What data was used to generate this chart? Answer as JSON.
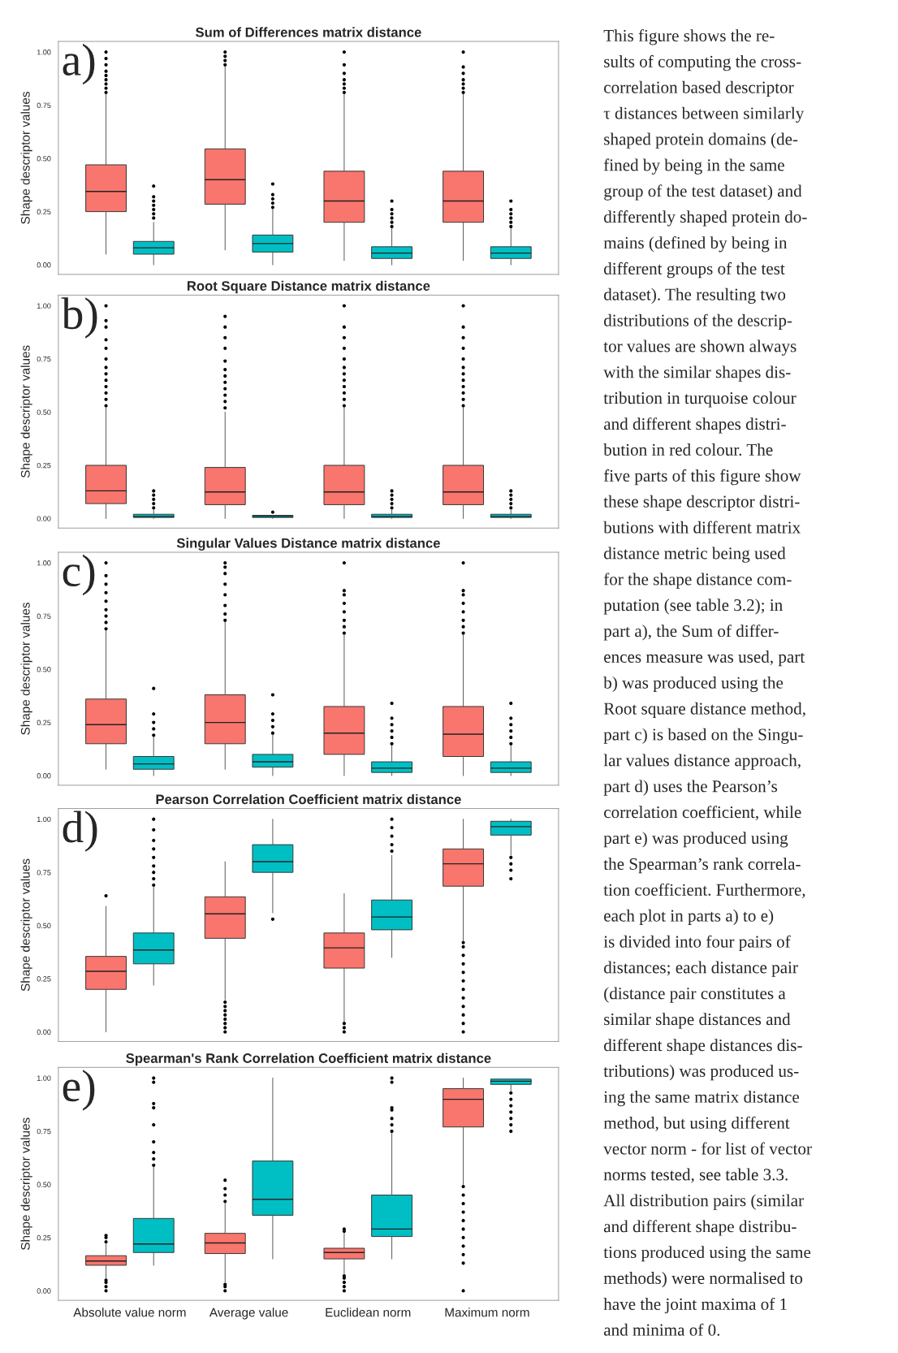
{
  "chart_data": [
    {
      "type": "box",
      "title": "Sum of Differences matrix distance",
      "ylabel": "Shape descriptor values",
      "categories": [
        null,
        null,
        null,
        null
      ],
      "ylim": [
        -0.045,
        1.05
      ],
      "yticks": [
        {
          "value": 0,
          "label": "0.00"
        },
        {
          "value": 0.25,
          "label": "0.25"
        },
        {
          "value": 0.5,
          "label": "0.50"
        },
        {
          "value": 0.75,
          "label": "0.75"
        },
        {
          "value": 1,
          "label": "1.00"
        }
      ],
      "tick_labels": "y",
      "annotations": [
        "a)"
      ],
      "series": [
        {
          "color": "#f8766d",
          "boxes": [
            {
              "low": 0.05,
              "q1": 0.25,
              "median": 0.345,
              "q3": 0.47,
              "high": 0.8,
              "outliers": [
                0.81,
                0.83,
                0.85,
                0.87,
                0.89,
                0.91,
                0.94,
                0.97,
                1.0
              ]
            },
            {
              "low": 0.07,
              "q1": 0.285,
              "median": 0.4,
              "q3": 0.545,
              "high": 0.93,
              "outliers": [
                0.94,
                0.96,
                0.98,
                1.0
              ]
            },
            {
              "low": 0.02,
              "q1": 0.2,
              "median": 0.3,
              "q3": 0.44,
              "high": 0.8,
              "outliers": [
                0.81,
                0.83,
                0.85,
                0.87,
                0.9,
                0.94,
                1.0
              ]
            },
            {
              "low": 0.02,
              "q1": 0.2,
              "median": 0.3,
              "q3": 0.44,
              "high": 0.8,
              "outliers": [
                0.81,
                0.83,
                0.85,
                0.87,
                0.9,
                0.93,
                1.0
              ]
            }
          ]
        },
        {
          "color": "#00bfc4",
          "boxes": [
            {
              "low": 0.0,
              "q1": 0.05,
              "median": 0.08,
              "q3": 0.11,
              "high": 0.2,
              "outliers": [
                0.22,
                0.24,
                0.26,
                0.28,
                0.3,
                0.32,
                0.37
              ]
            },
            {
              "low": 0.0,
              "q1": 0.06,
              "median": 0.1,
              "q3": 0.14,
              "high": 0.26,
              "outliers": [
                0.27,
                0.29,
                0.31,
                0.33,
                0.38
              ]
            },
            {
              "low": 0.0,
              "q1": 0.03,
              "median": 0.055,
              "q3": 0.085,
              "high": 0.17,
              "outliers": [
                0.18,
                0.2,
                0.22,
                0.24,
                0.26,
                0.3
              ]
            },
            {
              "low": 0.0,
              "q1": 0.03,
              "median": 0.055,
              "q3": 0.085,
              "high": 0.17,
              "outliers": [
                0.18,
                0.2,
                0.22,
                0.24,
                0.26,
                0.3
              ]
            }
          ]
        }
      ]
    },
    {
      "type": "box",
      "title": "Root Square Distance matrix distance",
      "ylabel": "Shape descriptor values",
      "categories": [
        null,
        null,
        null,
        null
      ],
      "ylim": [
        -0.045,
        1.05
      ],
      "yticks": [
        {
          "value": 0,
          "label": "0.00"
        },
        {
          "value": 0.25,
          "label": "0.25"
        },
        {
          "value": 0.5,
          "label": "0.50"
        },
        {
          "value": 0.75,
          "label": "0.75"
        },
        {
          "value": 1,
          "label": "1.00"
        }
      ],
      "tick_labels": "y",
      "annotations": [
        "b)"
      ],
      "series": [
        {
          "color": "#f8766d",
          "boxes": [
            {
              "low": 0.0,
              "q1": 0.07,
              "median": 0.13,
              "q3": 0.25,
              "high": 0.52,
              "outliers": [
                0.53,
                0.56,
                0.59,
                0.62,
                0.65,
                0.68,
                0.71,
                0.75,
                0.8,
                0.84,
                0.9,
                0.93,
                1.0
              ]
            },
            {
              "low": 0.0,
              "q1": 0.065,
              "median": 0.125,
              "q3": 0.24,
              "high": 0.5,
              "outliers": [
                0.52,
                0.55,
                0.58,
                0.61,
                0.64,
                0.67,
                0.7,
                0.74,
                0.8,
                0.85,
                0.9,
                0.95
              ]
            },
            {
              "low": 0.0,
              "q1": 0.065,
              "median": 0.125,
              "q3": 0.25,
              "high": 0.52,
              "outliers": [
                0.53,
                0.56,
                0.59,
                0.62,
                0.65,
                0.68,
                0.71,
                0.75,
                0.8,
                0.85,
                0.9,
                1.0
              ]
            },
            {
              "low": 0.0,
              "q1": 0.065,
              "median": 0.125,
              "q3": 0.25,
              "high": 0.52,
              "outliers": [
                0.53,
                0.56,
                0.59,
                0.62,
                0.65,
                0.68,
                0.71,
                0.75,
                0.8,
                0.85,
                0.9,
                1.0
              ]
            }
          ]
        },
        {
          "color": "#00bfc4",
          "boxes": [
            {
              "low": 0.0,
              "q1": 0.005,
              "median": 0.01,
              "q3": 0.02,
              "high": 0.04,
              "outliers": [
                0.05,
                0.07,
                0.09,
                0.11,
                0.13
              ]
            },
            {
              "low": 0.0,
              "q1": 0.005,
              "median": 0.01,
              "q3": 0.015,
              "high": 0.015,
              "outliers": [
                0.03
              ]
            },
            {
              "low": 0.0,
              "q1": 0.005,
              "median": 0.01,
              "q3": 0.02,
              "high": 0.04,
              "outliers": [
                0.05,
                0.07,
                0.09,
                0.11,
                0.13
              ]
            },
            {
              "low": 0.0,
              "q1": 0.005,
              "median": 0.01,
              "q3": 0.02,
              "high": 0.04,
              "outliers": [
                0.05,
                0.07,
                0.09,
                0.11,
                0.13
              ]
            }
          ]
        }
      ]
    },
    {
      "type": "box",
      "title": "Singular Values Distance matrix distance",
      "ylabel": "Shape descriptor values",
      "categories": [
        null,
        null,
        null,
        null
      ],
      "ylim": [
        -0.045,
        1.05
      ],
      "yticks": [
        {
          "value": 0,
          "label": "0.00"
        },
        {
          "value": 0.25,
          "label": "0.25"
        },
        {
          "value": 0.5,
          "label": "0.50"
        },
        {
          "value": 0.75,
          "label": "0.75"
        },
        {
          "value": 1,
          "label": "1.00"
        }
      ],
      "tick_labels": "y",
      "annotations": [
        "c)"
      ],
      "series": [
        {
          "color": "#f8766d",
          "boxes": [
            {
              "low": 0.03,
              "q1": 0.15,
              "median": 0.24,
              "q3": 0.36,
              "high": 0.68,
              "outliers": [
                0.69,
                0.72,
                0.75,
                0.78,
                0.82,
                0.86,
                0.9,
                0.94,
                1.0
              ]
            },
            {
              "low": 0.03,
              "q1": 0.15,
              "median": 0.25,
              "q3": 0.38,
              "high": 0.72,
              "outliers": [
                0.73,
                0.76,
                0.8,
                0.85,
                0.9,
                0.95,
                0.98,
                1.0
              ]
            },
            {
              "low": 0.0,
              "q1": 0.1,
              "median": 0.2,
              "q3": 0.325,
              "high": 0.66,
              "outliers": [
                0.67,
                0.7,
                0.73,
                0.77,
                0.81,
                0.85,
                0.87,
                1.0
              ]
            },
            {
              "low": 0.0,
              "q1": 0.09,
              "median": 0.195,
              "q3": 0.325,
              "high": 0.66,
              "outliers": [
                0.67,
                0.7,
                0.73,
                0.77,
                0.81,
                0.85,
                0.87,
                1.0
              ]
            }
          ]
        },
        {
          "color": "#00bfc4",
          "boxes": [
            {
              "low": 0.0,
              "q1": 0.03,
              "median": 0.055,
              "q3": 0.09,
              "high": 0.18,
              "outliers": [
                0.19,
                0.22,
                0.25,
                0.29,
                0.41
              ]
            },
            {
              "low": 0.0,
              "q1": 0.04,
              "median": 0.065,
              "q3": 0.1,
              "high": 0.19,
              "outliers": [
                0.2,
                0.23,
                0.26,
                0.29,
                0.38
              ]
            },
            {
              "low": 0.0,
              "q1": 0.015,
              "median": 0.035,
              "q3": 0.065,
              "high": 0.14,
              "outliers": [
                0.15,
                0.18,
                0.21,
                0.24,
                0.27,
                0.34
              ]
            },
            {
              "low": 0.0,
              "q1": 0.015,
              "median": 0.035,
              "q3": 0.065,
              "high": 0.14,
              "outliers": [
                0.15,
                0.18,
                0.21,
                0.24,
                0.27,
                0.34
              ]
            }
          ]
        }
      ]
    },
    {
      "type": "box",
      "title": "Pearson Correlation Coefficient matrix distance",
      "ylabel": "Shape descriptor values",
      "categories": [
        null,
        null,
        null,
        null
      ],
      "ylim": [
        -0.045,
        1.05
      ],
      "yticks": [
        {
          "value": 0,
          "label": "0.00"
        },
        {
          "value": 0.25,
          "label": "0.25"
        },
        {
          "value": 0.5,
          "label": "0.50"
        },
        {
          "value": 0.75,
          "label": "0.75"
        },
        {
          "value": 1,
          "label": "1.00"
        }
      ],
      "tick_labels": "y",
      "annotations": [
        "d)"
      ],
      "series": [
        {
          "color": "#f8766d",
          "boxes": [
            {
              "low": 0.0,
              "q1": 0.2,
              "median": 0.285,
              "q3": 0.355,
              "high": 0.59,
              "outliers": [
                0.64
              ]
            },
            {
              "low": 0.15,
              "q1": 0.44,
              "median": 0.555,
              "q3": 0.635,
              "high": 0.8,
              "outliers": [
                0.0,
                0.02,
                0.04,
                0.06,
                0.08,
                0.1,
                0.12,
                0.14
              ]
            },
            {
              "low": 0.05,
              "q1": 0.3,
              "median": 0.395,
              "q3": 0.465,
              "high": 0.65,
              "outliers": [
                0.0,
                0.02,
                0.04
              ]
            },
            {
              "low": 0.43,
              "q1": 0.685,
              "median": 0.79,
              "q3": 0.86,
              "high": 1.0,
              "outliers": [
                0.0,
                0.04,
                0.08,
                0.12,
                0.16,
                0.2,
                0.24,
                0.28,
                0.32,
                0.36,
                0.4,
                0.42
              ]
            }
          ]
        },
        {
          "color": "#00bfc4",
          "boxes": [
            {
              "low": 0.22,
              "q1": 0.32,
              "median": 0.385,
              "q3": 0.465,
              "high": 0.68,
              "outliers": [
                0.69,
                0.72,
                0.75,
                0.78,
                0.82,
                0.86,
                0.9,
                0.95,
                1.0
              ]
            },
            {
              "low": 0.56,
              "q1": 0.75,
              "median": 0.8,
              "q3": 0.88,
              "high": 1.0,
              "outliers": [
                0.53
              ]
            },
            {
              "low": 0.35,
              "q1": 0.48,
              "median": 0.54,
              "q3": 0.62,
              "high": 0.83,
              "outliers": [
                0.85,
                0.88,
                0.92,
                0.96,
                1.0
              ]
            },
            {
              "low": 0.83,
              "q1": 0.925,
              "median": 0.965,
              "q3": 0.99,
              "high": 1.0,
              "outliers": [
                0.72,
                0.76,
                0.79,
                0.82
              ]
            }
          ]
        }
      ]
    },
    {
      "type": "box",
      "title": "Spearman's Rank Correlation Coefficient matrix distance",
      "ylabel": "Shape descriptor values",
      "categories": [
        "Absolute value norm",
        "Average value",
        "Euclidean norm",
        "Maximum norm"
      ],
      "ylim": [
        -0.045,
        1.05
      ],
      "yticks": [
        {
          "value": 0,
          "label": "0.00"
        },
        {
          "value": 0.25,
          "label": "0.25"
        },
        {
          "value": 0.5,
          "label": "0.50"
        },
        {
          "value": 0.75,
          "label": "0.75"
        },
        {
          "value": 1,
          "label": "1.00"
        }
      ],
      "annotations": [
        "e)"
      ],
      "series": [
        {
          "color": "#f8766d",
          "boxes": [
            {
              "low": 0.06,
              "q1": 0.12,
              "median": 0.14,
              "q3": 0.165,
              "high": 0.22,
              "outliers": [
                0.0,
                0.02,
                0.04,
                0.05,
                0.23,
                0.25,
                0.26
              ]
            },
            {
              "low": 0.04,
              "q1": 0.175,
              "median": 0.225,
              "q3": 0.27,
              "high": 0.41,
              "outliers": [
                0.0,
                0.02,
                0.03,
                0.42,
                0.45,
                0.48,
                0.52
              ]
            },
            {
              "low": 0.08,
              "q1": 0.15,
              "median": 0.18,
              "q3": 0.2,
              "high": 0.27,
              "outliers": [
                0.0,
                0.02,
                0.04,
                0.06,
                0.07,
                0.28,
                0.29
              ]
            },
            {
              "low": 0.5,
              "q1": 0.77,
              "median": 0.9,
              "q3": 0.95,
              "high": 1.0,
              "outliers": [
                0.0,
                0.13,
                0.17,
                0.21,
                0.25,
                0.29,
                0.33,
                0.37,
                0.41,
                0.45,
                0.49
              ]
            }
          ]
        },
        {
          "color": "#00bfc4",
          "boxes": [
            {
              "low": 0.12,
              "q1": 0.18,
              "median": 0.22,
              "q3": 0.34,
              "high": 0.58,
              "outliers": [
                0.59,
                0.62,
                0.65,
                0.7,
                0.78,
                0.86,
                0.88,
                0.98,
                1.0
              ]
            },
            {
              "low": 0.15,
              "q1": 0.355,
              "median": 0.43,
              "q3": 0.61,
              "high": 1.0
            },
            {
              "low": 0.15,
              "q1": 0.255,
              "median": 0.29,
              "q3": 0.45,
              "high": 0.74,
              "outliers": [
                0.75,
                0.78,
                0.81,
                0.85,
                0.86,
                0.98,
                1.0
              ]
            },
            {
              "low": 0.94,
              "q1": 0.97,
              "median": 0.985,
              "q3": 0.995,
              "high": 0.995,
              "outliers": [
                0.75,
                0.78,
                0.81,
                0.84,
                0.87,
                0.9,
                0.93
              ]
            }
          ]
        }
      ]
    },
    {
      "type": "other",
      "annotations": [
        "This figure shows the re-",
        "sults of computing the cross-",
        "correlation based descriptor",
        "τ distances between similarly",
        "shaped protein domains (de-",
        "fined by being in the same",
        "group of the test dataset) and",
        "differently shaped protein do-",
        "mains (defined by being in",
        "different groups of the test",
        "dataset). The resulting two",
        "distributions of the descrip-",
        "tor values are shown always",
        "with the similar shapes dis-",
        "tribution in turquoise colour",
        "and different shapes distri-",
        "bution in red colour. The",
        "five parts of this figure show",
        "these shape descriptor distri-",
        "butions with different matrix",
        "distance metric being used",
        "for the shape distance com-",
        "putation (see table 3.2); in",
        "part a), the Sum of differ-",
        "ences measure was used, part",
        "b) was produced using the",
        "Root square distance method,",
        "part c) is based on the Singu-",
        "lar values distance approach,",
        "part d) uses the Pearson’s",
        "correlation coefficient, while",
        "part e) was produced using",
        "the Spearman’s rank correla-",
        "tion coefficient. Furthermore,",
        "each plot in parts a) to e)",
        "is divided into four pairs of",
        "distances; each distance pair",
        "(distance pair constitutes a",
        "similar shape distances and",
        "different shape distances dis-",
        "tributions) was produced us-",
        "ing the same matrix distance",
        "method, but using different",
        "vector norm - for list of vector",
        "norms tested, see table 3.3.",
        "All distribution pairs (similar",
        "and different shape distribu-",
        "tions produced using the same",
        "methods) were normalised to",
        "have the joint maxima of 1",
        "and minima of 0."
      ]
    }
  ]
}
